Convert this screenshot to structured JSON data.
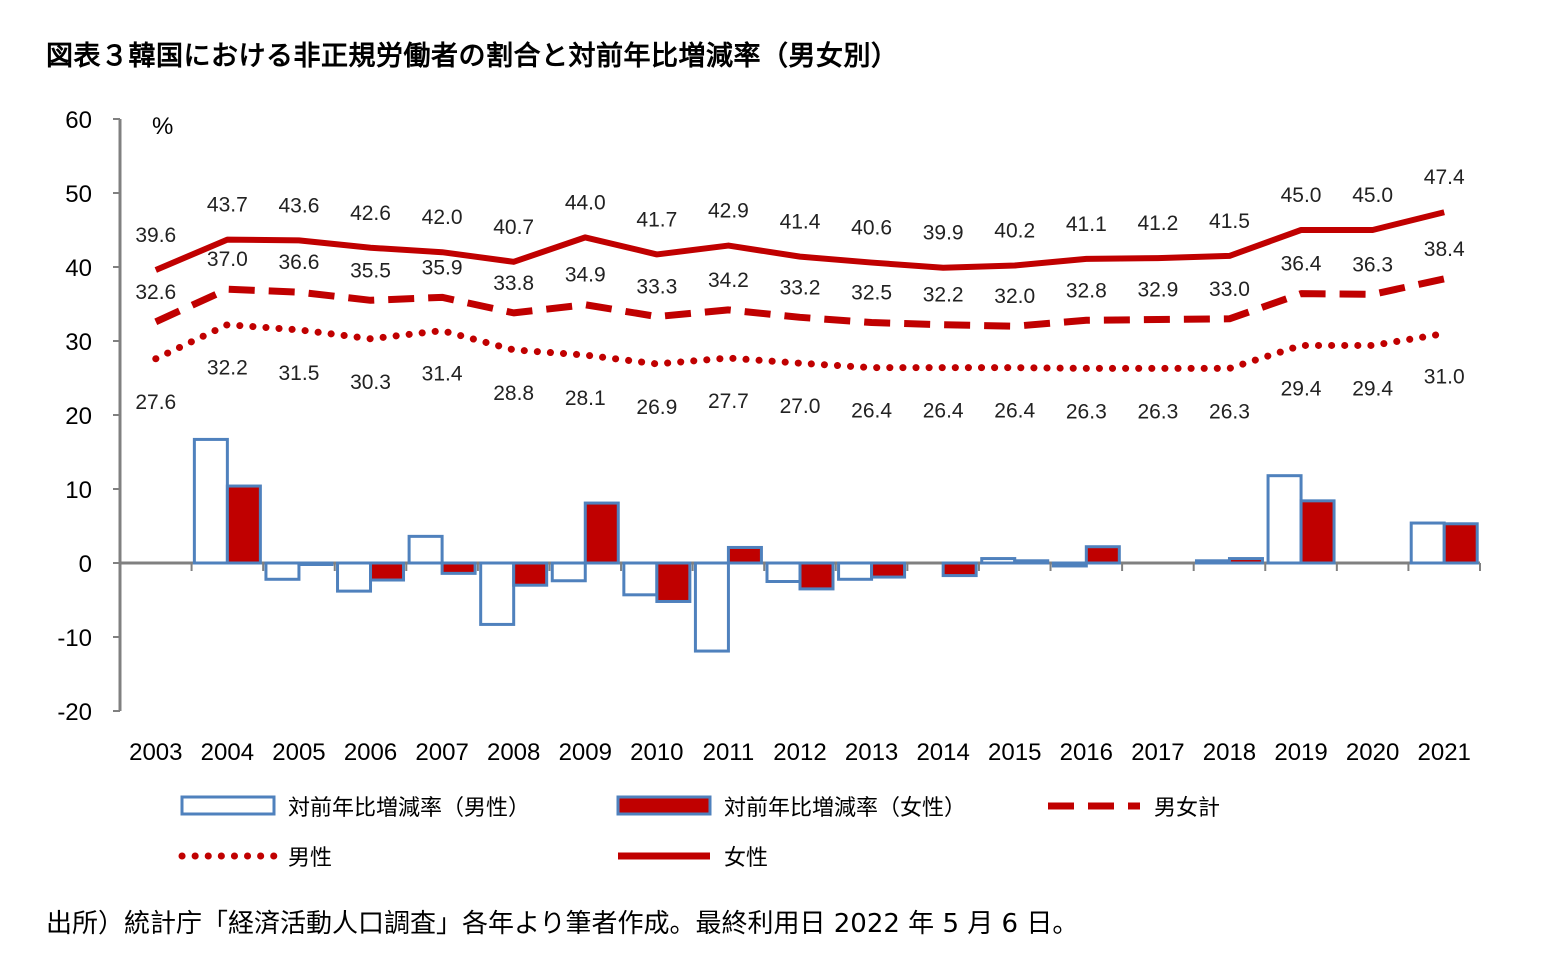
{
  "title": "図表３韓国における非正規労働者の割合と対前年比増減率（男女別）",
  "source": "出所）統計庁「経済活動人口調査」各年より筆者作成。最終利用日 2022 年 5 月 6 日。",
  "chart_data": {
    "type": "bar+line",
    "title": "図表３韓国における非正規労働者の割合と対前年比増減率（男女別）",
    "unit_label": "%",
    "ylim": [
      -20,
      60
    ],
    "yticks": [
      60,
      50,
      40,
      30,
      20,
      10,
      0,
      -10,
      -20
    ],
    "categories": [
      "2003",
      "2004",
      "2005",
      "2006",
      "2007",
      "2008",
      "2009",
      "2010",
      "2011",
      "2012",
      "2013",
      "2014",
      "2015",
      "2016",
      "2017",
      "2018",
      "2019",
      "2020",
      "2021"
    ],
    "bar_series": [
      {
        "name": "対前年比増減率（男性）",
        "fill": "#ffffff",
        "stroke": "#4f81bd",
        "values": [
          null,
          16.7,
          -2.2,
          -3.8,
          3.6,
          -8.3,
          -2.4,
          -4.3,
          -11.9,
          -2.5,
          -2.2,
          0.0,
          0.6,
          -0.4,
          0.0,
          0.3,
          11.8,
          0.0,
          5.4
        ]
      },
      {
        "name": "対前年比増減率（女性）",
        "fill": "#c00000",
        "stroke": "#4f81bd",
        "values": [
          null,
          10.4,
          -0.2,
          -2.3,
          -1.4,
          -3.0,
          8.1,
          -5.2,
          2.1,
          -3.5,
          -1.9,
          -1.7,
          0.3,
          2.2,
          0.0,
          0.6,
          8.4,
          0.0,
          5.3
        ]
      }
    ],
    "line_series": [
      {
        "name": "女性",
        "style": "solid",
        "color": "#c00000",
        "values": [
          39.6,
          43.7,
          43.6,
          42.6,
          42.0,
          40.7,
          44.0,
          41.7,
          42.9,
          41.4,
          40.6,
          39.9,
          40.2,
          41.1,
          41.2,
          41.5,
          45.0,
          45.0,
          47.4
        ]
      },
      {
        "name": "男女計",
        "style": "dashed",
        "color": "#c00000",
        "values": [
          32.6,
          37.0,
          36.6,
          35.5,
          35.9,
          33.8,
          34.9,
          33.3,
          34.2,
          33.2,
          32.5,
          32.2,
          32.0,
          32.8,
          32.9,
          33.0,
          36.4,
          36.3,
          38.4
        ]
      },
      {
        "name": "男性",
        "style": "dotted",
        "color": "#c00000",
        "values": [
          27.6,
          32.2,
          31.5,
          30.3,
          31.4,
          28.8,
          28.1,
          26.9,
          27.7,
          27.0,
          26.4,
          26.4,
          26.4,
          26.3,
          26.3,
          26.3,
          29.4,
          29.4,
          31.0
        ]
      }
    ],
    "data_labels": {
      "女性": [
        "39.6",
        "43.7",
        "43.6",
        "42.6",
        "42.0",
        "40.7",
        "44.0",
        "41.7",
        "42.9",
        "41.4",
        "40.6",
        "39.9",
        "40.2",
        "41.1",
        "41.2",
        "41.5",
        "45.0",
        "45.0",
        "47.4"
      ],
      "男女計": [
        "32.6",
        "37.0",
        "36.6",
        "35.5",
        "35.9",
        "33.8",
        "34.9",
        "33.3",
        "34.2",
        "33.2",
        "32.5",
        "32.2",
        "32.0",
        "32.8",
        "32.9",
        "33.0",
        "36.4",
        "36.3",
        "38.4"
      ],
      "男性": [
        "27.6",
        "32.2",
        "31.5",
        "30.3",
        "31.4",
        "28.8",
        "28.1",
        "26.9",
        "27.7",
        "27.0",
        "26.4",
        "26.4",
        "26.4",
        "26.3",
        "26.3",
        "26.3",
        "29.4",
        "29.4",
        "31.0"
      ]
    },
    "legend": {
      "placement": "bottom",
      "items": [
        {
          "name": "対前年比増減率（男性）",
          "kind": "bar-outline"
        },
        {
          "name": "対前年比増減率（女性）",
          "kind": "bar-filled"
        },
        {
          "name": "男女計",
          "kind": "line-dashed"
        },
        {
          "name": "男性",
          "kind": "line-dotted"
        },
        {
          "name": "女性",
          "kind": "line-solid"
        }
      ]
    }
  }
}
